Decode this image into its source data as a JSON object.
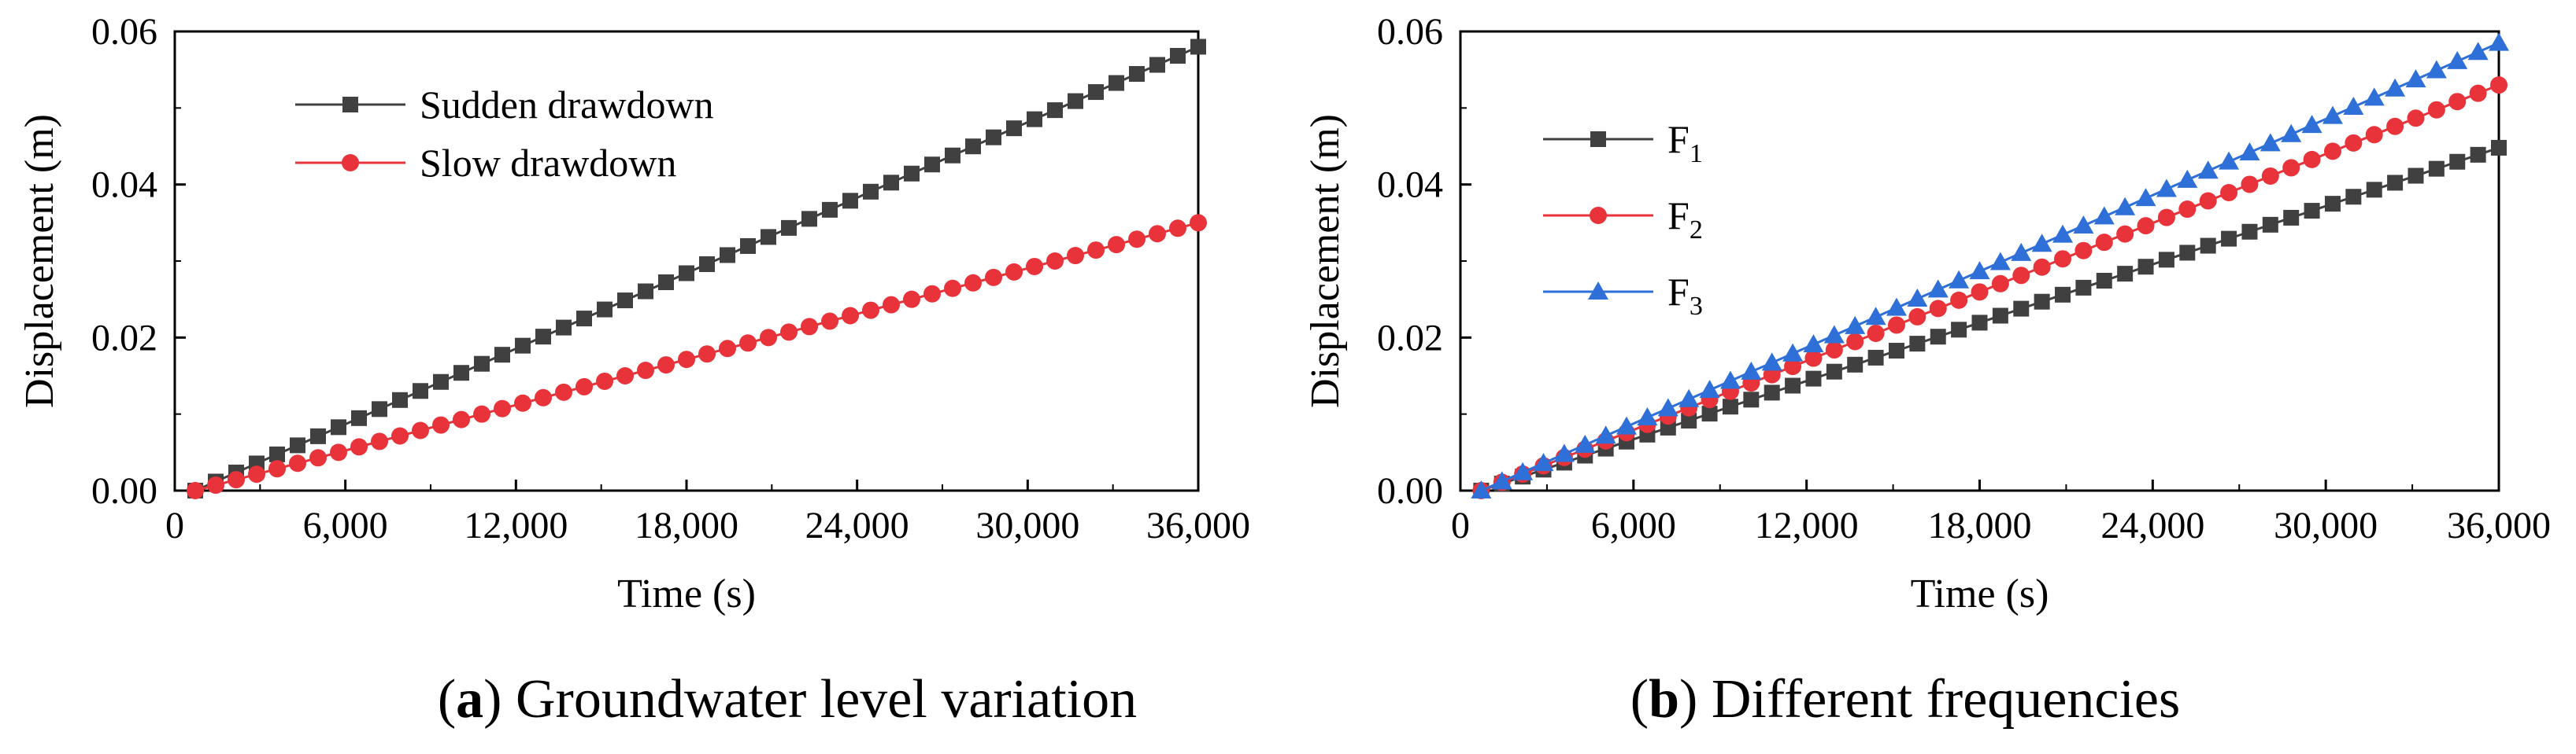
{
  "chart_data": [
    {
      "type": "scatter-line",
      "panel_tag": "a",
      "caption": "Groundwater level variation",
      "xlabel": "Time (s)",
      "ylabel": "Displacement (m)",
      "xlim": [
        0,
        36000
      ],
      "ylim": [
        0,
        0.06
      ],
      "xticks": [
        0,
        6000,
        12000,
        18000,
        24000,
        30000,
        36000
      ],
      "xtick_labels": [
        "0",
        "6,000",
        "12,000",
        "18,000",
        "24,000",
        "30,000",
        "36,000"
      ],
      "yticks": [
        0,
        0.02,
        0.04,
        0.06
      ],
      "ytick_labels": [
        "0.00",
        "0.02",
        "0.04",
        "0.06"
      ],
      "x_start": 720,
      "x_end": 36000,
      "n_points": 50,
      "legend_position": "top-left",
      "series": [
        {
          "name": "Sudden drawdown",
          "sub": "",
          "marker": "square",
          "color": "#404040",
          "y_start": 0.0,
          "y_end": 0.058
        },
        {
          "name": "Slow drawdown",
          "sub": "",
          "marker": "circle",
          "color": "#e8333a",
          "y_start": 0.0,
          "y_end": 0.035
        }
      ]
    },
    {
      "type": "scatter-line",
      "panel_tag": "b",
      "caption": "Different frequencies",
      "xlabel": "Time (s)",
      "ylabel": "Displacement (m)",
      "xlim": [
        0,
        36000
      ],
      "ylim": [
        0,
        0.06
      ],
      "xticks": [
        0,
        6000,
        12000,
        18000,
        24000,
        30000,
        36000
      ],
      "xtick_labels": [
        "0",
        "6,000",
        "12,000",
        "18,000",
        "24,000",
        "30,000",
        "36,000"
      ],
      "yticks": [
        0,
        0.02,
        0.04,
        0.06
      ],
      "ytick_labels": [
        "0.00",
        "0.02",
        "0.04",
        "0.06"
      ],
      "x_start": 720,
      "x_end": 36000,
      "n_points": 50,
      "legend_position": "center-left",
      "series": [
        {
          "name": "F",
          "sub": "1",
          "marker": "square",
          "color": "#404040",
          "y_start": 0.0,
          "y_end": 0.0448
        },
        {
          "name": "F",
          "sub": "2",
          "marker": "circle",
          "color": "#e8333a",
          "y_start": 0.0,
          "y_end": 0.053
        },
        {
          "name": "F",
          "sub": "3",
          "marker": "triangle",
          "color": "#2f6fd8",
          "y_start": 0.0,
          "y_end": 0.0585
        }
      ]
    }
  ]
}
